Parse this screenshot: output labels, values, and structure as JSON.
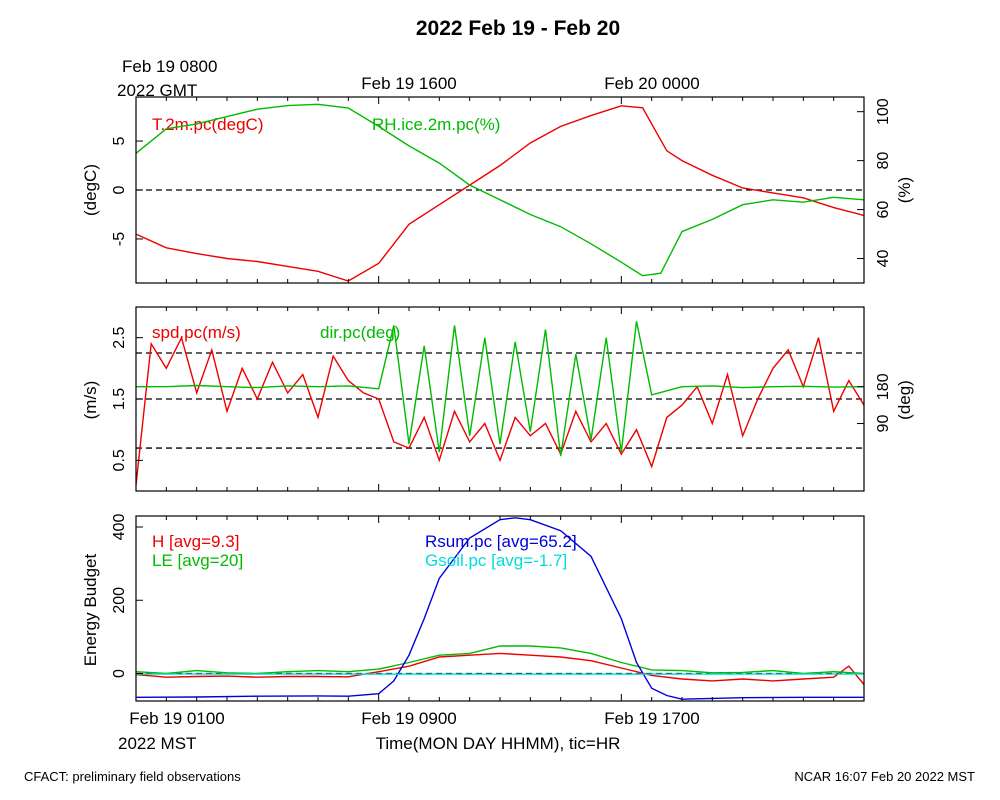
{
  "title": "2022 Feb 19 - Feb 20",
  "top_time_labels": {
    "gmt_start": "Feb 19 0800",
    "gmt_year": "2022 GMT",
    "gmt_mid": "Feb 19 1600",
    "gmt_end": "Feb 20 0000"
  },
  "bottom_time_labels": {
    "mst_start": "Feb 19 0100",
    "mst_year": "2022 MST",
    "mst_mid": "Feb 19 0900",
    "mst_end": "Feb 19 1700",
    "xlabel": "Time(MON DAY HHMM), tic=HR"
  },
  "footer": {
    "left": "CFACT: preliminary field observations",
    "right": "NCAR 16:07 Feb 20 2022 MST"
  },
  "colors": {
    "red": "#ee0000",
    "green": "#00bb00",
    "blue": "#0000dd",
    "cyan": "#00dddd",
    "black": "#000000"
  },
  "chart_data": [
    {
      "type": "line",
      "panel": "temperature-humidity",
      "x_unit": "hours since Feb 19 0100 MST",
      "xlim": [
        0,
        24
      ],
      "ylabel": "(degC)",
      "ylim": [
        -9.5,
        9.5
      ],
      "yticks": [
        -5,
        0,
        5
      ],
      "y2label": "(%)",
      "y2lim": [
        30,
        106
      ],
      "y2ticks": [
        40,
        60,
        80,
        100
      ],
      "reference_lines": [
        0
      ],
      "series": [
        {
          "name": "T.2m.pc(degC)",
          "axis": "left",
          "color": "red",
          "x": [
            0,
            1,
            2,
            3,
            4,
            5,
            6,
            7,
            8,
            9,
            10,
            11,
            12,
            13,
            14,
            15,
            16,
            16.7,
            17.5,
            18,
            19,
            20,
            21,
            22,
            23,
            24
          ],
          "y": [
            -4.5,
            -5.9,
            -6.5,
            -7,
            -7.3,
            -7.8,
            -8.3,
            -9.3,
            -7.5,
            -3.5,
            -1.5,
            0.5,
            2.5,
            4.8,
            6.5,
            7.6,
            8.6,
            8.4,
            4,
            3,
            1.5,
            0.2,
            -0.3,
            -0.8,
            -1.8,
            -2.6
          ]
        },
        {
          "name": "RH.ice.2m.pc(%)",
          "axis": "right",
          "color": "green",
          "x": [
            0,
            1,
            2,
            3,
            4,
            5,
            6,
            7,
            8,
            9,
            10,
            11,
            12,
            13,
            14,
            15,
            16,
            16.7,
            17.3,
            18,
            19,
            20,
            21,
            22,
            23,
            24
          ],
          "y": [
            83,
            93,
            95,
            98,
            101,
            102.5,
            103,
            101.5,
            94,
            86,
            79,
            70,
            64,
            58,
            53,
            46,
            38.5,
            33,
            34,
            51,
            56,
            62,
            64,
            63,
            65,
            64
          ]
        }
      ]
    },
    {
      "type": "line",
      "panel": "wind",
      "x_unit": "hours since Feb 19 0100 MST",
      "xlim": [
        0,
        24
      ],
      "ylabel": "(m/s)",
      "ylim": [
        0,
        3
      ],
      "yticks": [
        0.5,
        1.5,
        2.5
      ],
      "y2label": "(deg)",
      "y2lim": [
        -75,
        375
      ],
      "y2ticks": [
        90,
        180
      ],
      "reference_lines": [
        0.7,
        1.5,
        2.25
      ],
      "series": [
        {
          "name": "spd.pc(m/s)",
          "axis": "left",
          "color": "red",
          "x": [
            0,
            0.5,
            1,
            1.5,
            2,
            2.5,
            3,
            3.5,
            4,
            4.5,
            5,
            5.5,
            6,
            6.5,
            7,
            7.5,
            8,
            8.5,
            9,
            9.5,
            10,
            10.5,
            11,
            11.5,
            12,
            12.5,
            13,
            13.5,
            14,
            14.5,
            15,
            15.5,
            16,
            16.5,
            17,
            17.5,
            18,
            18.5,
            19,
            19.5,
            20,
            20.5,
            21,
            21.5,
            22,
            22.5,
            23,
            23.5,
            24
          ],
          "y": [
            0.1,
            2.4,
            2.0,
            2.5,
            1.6,
            2.3,
            1.3,
            2.0,
            1.5,
            2.1,
            1.6,
            1.9,
            1.2,
            2.2,
            1.8,
            1.6,
            1.5,
            0.8,
            0.7,
            1.2,
            0.5,
            1.3,
            0.8,
            1.1,
            0.5,
            1.2,
            0.9,
            1.1,
            0.6,
            1.3,
            0.8,
            1.1,
            0.6,
            1.0,
            0.4,
            1.2,
            1.4,
            1.7,
            1.1,
            1.9,
            0.9,
            1.5,
            2.0,
            2.3,
            1.7,
            2.5,
            1.3,
            1.8,
            1.4
          ]
        },
        {
          "name": "dir.pc(deg)",
          "axis": "right",
          "color": "green",
          "x": [
            0,
            1,
            2,
            3,
            4,
            5,
            6,
            7,
            8,
            8.5,
            9,
            9.5,
            10,
            10.5,
            11,
            11.5,
            12,
            12.5,
            13,
            13.5,
            14,
            14.5,
            15,
            15.5,
            16,
            16.5,
            17,
            18,
            19,
            20,
            21,
            22,
            23,
            24
          ],
          "y": [
            180,
            180,
            183,
            180,
            178,
            182,
            180,
            182,
            175,
            330,
            40,
            280,
            20,
            330,
            60,
            300,
            40,
            290,
            70,
            320,
            10,
            260,
            50,
            300,
            20,
            340,
            160,
            180,
            182,
            178,
            180,
            181,
            179,
            180
          ]
        }
      ]
    },
    {
      "type": "line",
      "panel": "energy-budget",
      "x_unit": "hours since Feb 19 0100 MST",
      "xlim": [
        0,
        24
      ],
      "ylabel": "Energy Budget",
      "ylim": [
        -75,
        430
      ],
      "yticks": [
        0,
        200,
        400
      ],
      "reference_lines": [
        0
      ],
      "series": [
        {
          "name": "H [avg=9.3]",
          "color": "red",
          "x": [
            0,
            1,
            2,
            3,
            4,
            5,
            6,
            7,
            8,
            9,
            10,
            11,
            12,
            13,
            14,
            15,
            16,
            17,
            18,
            19,
            20,
            21,
            22,
            23,
            23.5,
            24
          ],
          "y": [
            -3,
            -10,
            -8,
            -7,
            -10,
            -8,
            -8,
            -9,
            5,
            20,
            45,
            50,
            55,
            50,
            45,
            35,
            15,
            -5,
            -15,
            -20,
            -15,
            -20,
            -15,
            -10,
            20,
            -30
          ]
        },
        {
          "name": "LE [avg=20]",
          "color": "green",
          "x": [
            0,
            1,
            2,
            3,
            4,
            5,
            6,
            7,
            8,
            9,
            10,
            11,
            12,
            13,
            14,
            15,
            16,
            17,
            18,
            19,
            20,
            21,
            22,
            23,
            24
          ],
          "y": [
            5,
            0,
            8,
            2,
            0,
            5,
            8,
            5,
            12,
            30,
            50,
            55,
            75,
            75,
            70,
            55,
            30,
            10,
            8,
            2,
            3,
            8,
            0,
            5,
            0
          ]
        },
        {
          "name": "Rsum.pc [avg=65.2]",
          "color": "blue",
          "x": [
            0,
            2,
            4,
            6,
            7,
            8,
            8.5,
            9,
            9.5,
            10,
            11,
            12,
            12.5,
            13,
            14,
            15,
            16,
            16.5,
            17,
            17.5,
            18,
            19,
            20,
            22,
            24
          ],
          "y": [
            -65,
            -64,
            -62,
            -61,
            -62,
            -55,
            -20,
            50,
            150,
            260,
            370,
            420,
            425,
            420,
            390,
            320,
            150,
            30,
            -40,
            -60,
            -70,
            -68,
            -66,
            -65,
            -65
          ]
        },
        {
          "name": "Gsoil.pc [avg=-1.7]",
          "color": "cyan",
          "x": [
            0,
            6,
            12,
            18,
            24
          ],
          "y": [
            -1.5,
            -1.7,
            -1.8,
            -1.7,
            -1.6
          ]
        }
      ]
    }
  ]
}
